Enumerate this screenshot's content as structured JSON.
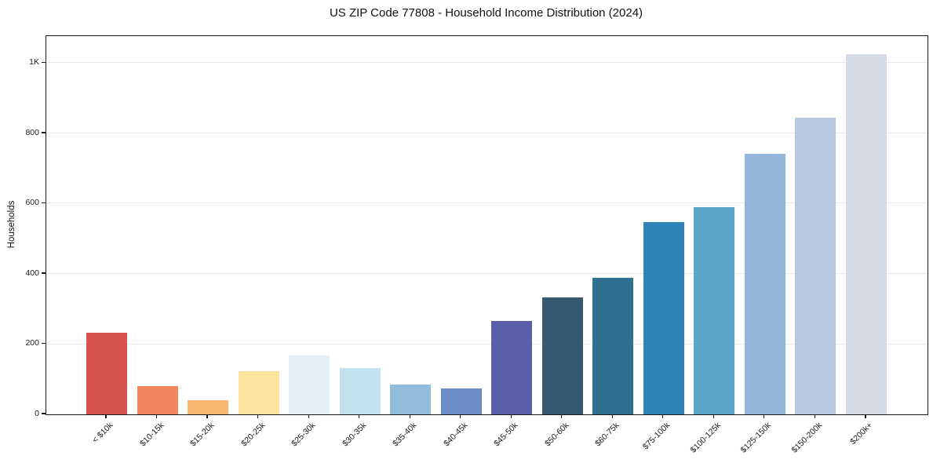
{
  "chart_data": {
    "type": "bar",
    "title": "US ZIP Code 77808 - Household Income Distribution (2024)",
    "xlabel": "",
    "ylabel": "Households",
    "categories": [
      "< $10k",
      "$10-15k",
      "$15-20k",
      "$20-25k",
      "$25-30k",
      "$30-35k",
      "$35-40k",
      "$40-45k",
      "$45-50k",
      "$50-60k",
      "$60-75k",
      "$75-100k",
      "$100-125k",
      "$125-150k",
      "$150-200k",
      "$200k+"
    ],
    "values": [
      232,
      80,
      40,
      123,
      168,
      131,
      85,
      74,
      267,
      333,
      389,
      548,
      590,
      742,
      845,
      1025
    ],
    "bar_colors": [
      "#d6544e",
      "#f2875f",
      "#f8b671",
      "#fce49e",
      "#e4f1f6",
      "#c3e1ee",
      "#91bcdb",
      "#6b8ec6",
      "#5a5fa9",
      "#36596f",
      "#2f7191",
      "#3084b8",
      "#5ba6c9",
      "#92b6d9",
      "#b7c8e0",
      "#d6d9e6"
    ],
    "yticks": [
      {
        "value": 0,
        "label": "0"
      },
      {
        "value": 200,
        "label": "200"
      },
      {
        "value": 400,
        "label": "400"
      },
      {
        "value": 600,
        "label": "600"
      },
      {
        "value": 800,
        "label": "800"
      },
      {
        "value": 1000,
        "label": "1K"
      }
    ],
    "ylim": [
      0,
      1077
    ],
    "grid": true,
    "legend": "none",
    "colors": {
      "background": "#ffffff",
      "gridline": "#e9e9ec",
      "spine": "#1a1a1a",
      "text": "#111111"
    }
  }
}
